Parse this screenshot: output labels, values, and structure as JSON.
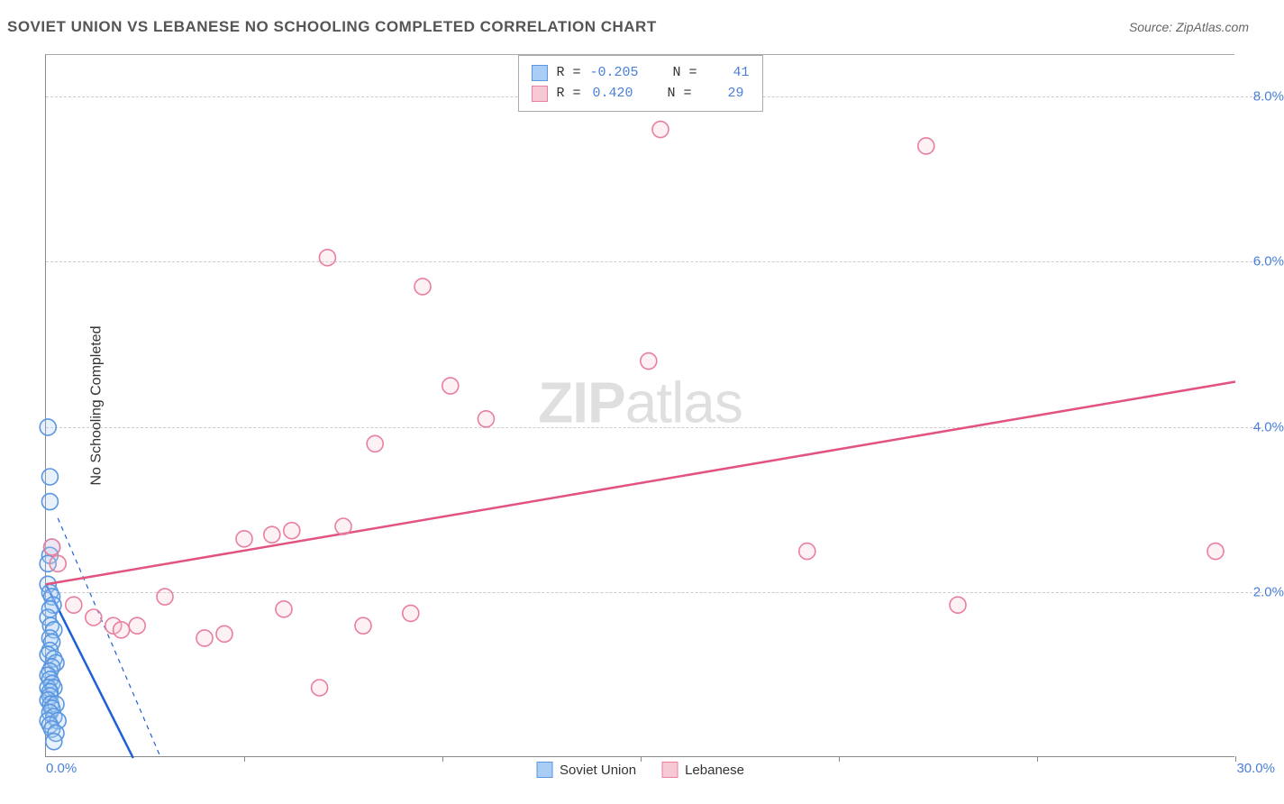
{
  "title": "SOVIET UNION VS LEBANESE NO SCHOOLING COMPLETED CORRELATION CHART",
  "source_label": "Source:",
  "source_name": "ZipAtlas.com",
  "ylabel": "No Schooling Completed",
  "watermark_bold": "ZIP",
  "watermark_rest": "atlas",
  "chart": {
    "type": "scatter",
    "xlim": [
      0,
      30
    ],
    "ylim": [
      0,
      8.5
    ],
    "xtick_positions": [
      0,
      5,
      10,
      15,
      20,
      25,
      30
    ],
    "xtick_labels_shown": {
      "0": "0.0%",
      "30": "30.0%"
    },
    "ytick_positions": [
      2,
      4,
      6,
      8
    ],
    "ytick_labels": [
      "2.0%",
      "4.0%",
      "6.0%",
      "8.0%"
    ],
    "grid_color": "#cccccc",
    "border_color": "#888888",
    "background_color": "#ffffff",
    "label_color": "#4a7fd8",
    "axis_label_fontsize": 15,
    "title_fontsize": 17,
    "marker_radius": 9,
    "marker_stroke_width": 1.6,
    "marker_fill_opacity": 0.25,
    "trend_line_width": 2.5,
    "series": [
      {
        "name": "Soviet Union",
        "color_fill": "#a9cdf4",
        "color_stroke": "#5a97e0",
        "trend_color": "#1e5fd6",
        "R": "-0.205",
        "N": "41",
        "trend": {
          "x1": 0,
          "y1": 2.1,
          "x2": 2.2,
          "y2": 0
        },
        "trend_dashed": {
          "x1": 0.3,
          "y1": 2.9,
          "x2": 2.9,
          "y2": 0
        },
        "points": [
          [
            0.05,
            4.0
          ],
          [
            0.1,
            3.4
          ],
          [
            0.1,
            3.1
          ],
          [
            0.15,
            2.55
          ],
          [
            0.1,
            2.45
          ],
          [
            0.05,
            2.35
          ],
          [
            0.05,
            2.1
          ],
          [
            0.1,
            2.0
          ],
          [
            0.15,
            1.95
          ],
          [
            0.18,
            1.85
          ],
          [
            0.1,
            1.8
          ],
          [
            0.05,
            1.7
          ],
          [
            0.12,
            1.6
          ],
          [
            0.2,
            1.55
          ],
          [
            0.1,
            1.45
          ],
          [
            0.15,
            1.4
          ],
          [
            0.1,
            1.3
          ],
          [
            0.05,
            1.25
          ],
          [
            0.2,
            1.2
          ],
          [
            0.25,
            1.15
          ],
          [
            0.15,
            1.1
          ],
          [
            0.1,
            1.05
          ],
          [
            0.05,
            1.0
          ],
          [
            0.1,
            0.95
          ],
          [
            0.15,
            0.9
          ],
          [
            0.05,
            0.85
          ],
          [
            0.2,
            0.85
          ],
          [
            0.1,
            0.8
          ],
          [
            0.1,
            0.75
          ],
          [
            0.05,
            0.7
          ],
          [
            0.12,
            0.65
          ],
          [
            0.25,
            0.65
          ],
          [
            0.15,
            0.6
          ],
          [
            0.1,
            0.55
          ],
          [
            0.2,
            0.5
          ],
          [
            0.05,
            0.45
          ],
          [
            0.3,
            0.45
          ],
          [
            0.1,
            0.4
          ],
          [
            0.15,
            0.35
          ],
          [
            0.25,
            0.3
          ],
          [
            0.2,
            0.2
          ]
        ]
      },
      {
        "name": "Lebanese",
        "color_fill": "#f7c9d4",
        "color_stroke": "#e97fa0",
        "trend_color": "#e2537f",
        "R": "0.420",
        "N": "29",
        "trend": {
          "x1": 0,
          "y1": 2.1,
          "x2": 30,
          "y2": 4.55
        },
        "points": [
          [
            0.15,
            2.55
          ],
          [
            0.3,
            2.35
          ],
          [
            0.7,
            1.85
          ],
          [
            1.2,
            1.7
          ],
          [
            1.7,
            1.6
          ],
          [
            1.9,
            1.55
          ],
          [
            2.3,
            1.6
          ],
          [
            3.0,
            1.95
          ],
          [
            4.0,
            1.45
          ],
          [
            4.5,
            1.5
          ],
          [
            5.0,
            2.65
          ],
          [
            5.7,
            2.7
          ],
          [
            6.0,
            1.8
          ],
          [
            6.2,
            2.75
          ],
          [
            6.9,
            0.85
          ],
          [
            7.1,
            6.05
          ],
          [
            7.5,
            2.8
          ],
          [
            8.0,
            1.6
          ],
          [
            8.3,
            3.8
          ],
          [
            9.2,
            1.75
          ],
          [
            9.5,
            5.7
          ],
          [
            10.2,
            4.5
          ],
          [
            11.1,
            4.1
          ],
          [
            15.2,
            4.8
          ],
          [
            15.5,
            7.6
          ],
          [
            19.2,
            2.5
          ],
          [
            22.2,
            7.4
          ],
          [
            23.0,
            1.85
          ],
          [
            29.5,
            2.5
          ]
        ]
      }
    ]
  },
  "legend_bottom": [
    {
      "label": "Soviet Union",
      "fill": "#a9cdf4",
      "stroke": "#5a97e0"
    },
    {
      "label": "Lebanese",
      "fill": "#f7c9d4",
      "stroke": "#e97fa0"
    }
  ],
  "legend_top_labels": {
    "R": "R =",
    "N": "N ="
  }
}
